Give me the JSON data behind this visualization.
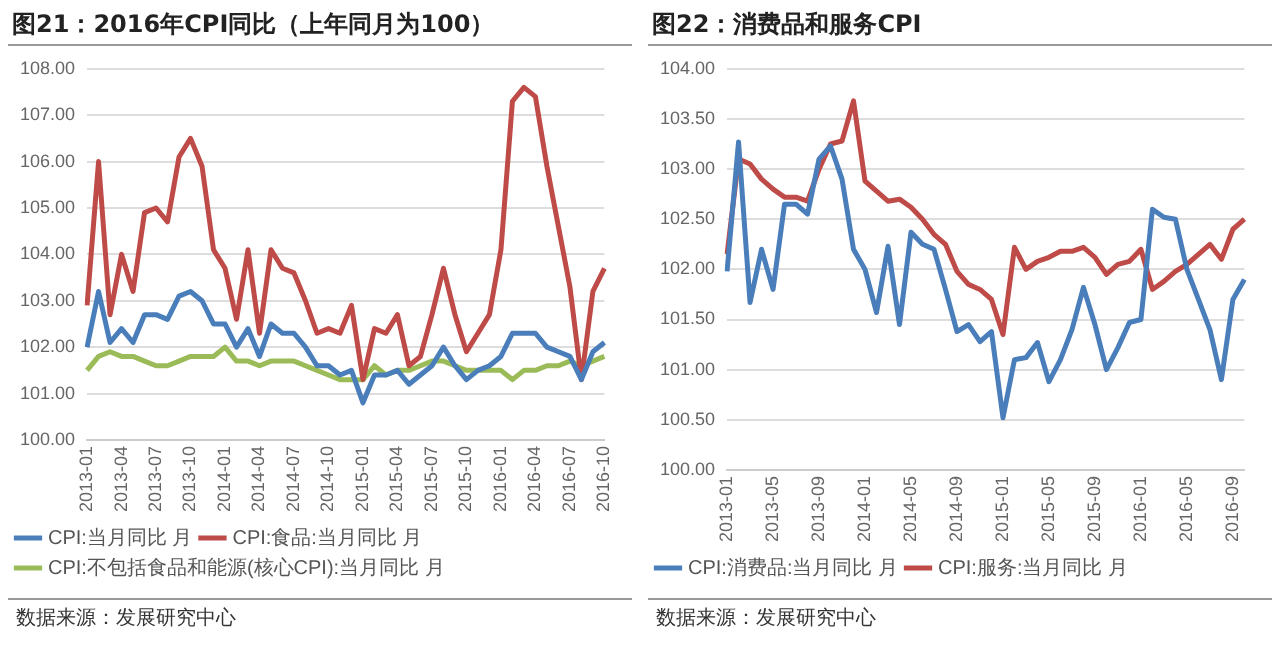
{
  "chart_data": [
    {
      "type": "line",
      "title": "图21：2016年CPI同比（上年同月为100）",
      "categories": [
        "2013-01",
        null,
        null,
        "2013-04",
        null,
        null,
        "2013-07",
        null,
        null,
        "2013-10",
        null,
        null,
        "2014-01",
        null,
        null,
        "2014-04",
        null,
        null,
        "2014-07",
        null,
        null,
        "2014-10",
        null,
        null,
        "2015-01",
        null,
        null,
        "2015-04",
        null,
        null,
        "2015-07",
        null,
        null,
        "2015-10",
        null,
        null,
        "2016-01",
        null,
        null,
        "2016-04",
        null,
        null,
        "2016-07",
        null,
        null,
        "2016-10"
      ],
      "series": [
        {
          "name": "CPI:当月同比 月",
          "color": "#4a7ebb",
          "values": [
            102.0,
            103.2,
            102.1,
            102.4,
            102.1,
            102.7,
            102.7,
            102.6,
            103.1,
            103.2,
            103.0,
            102.5,
            102.5,
            102.0,
            102.4,
            101.8,
            102.5,
            102.3,
            102.3,
            102.0,
            101.6,
            101.6,
            101.4,
            101.5,
            100.8,
            101.4,
            101.4,
            101.5,
            101.2,
            101.4,
            101.6,
            102.0,
            101.6,
            101.3,
            101.5,
            101.6,
            101.8,
            102.3,
            102.3,
            102.3,
            102.0,
            101.9,
            101.8,
            101.3,
            101.9,
            102.1
          ]
        },
        {
          "name": "CPI:食品:当月同比 月",
          "color": "#be4b48",
          "values": [
            102.9,
            106.0,
            102.7,
            104.0,
            103.2,
            104.9,
            105.0,
            104.7,
            106.1,
            106.5,
            105.9,
            104.1,
            103.7,
            102.6,
            104.1,
            102.3,
            104.1,
            103.7,
            103.6,
            103.0,
            102.3,
            102.4,
            102.3,
            102.9,
            101.3,
            102.4,
            102.3,
            102.7,
            101.6,
            101.8,
            102.7,
            103.7,
            102.7,
            101.9,
            102.3,
            102.7,
            104.1,
            107.3,
            107.6,
            107.4,
            105.9,
            104.6,
            103.3,
            101.3,
            103.2,
            103.7
          ]
        },
        {
          "name": "CPI:不包括食品和能源(核心CPI):当月同比 月",
          "color": "#9bbb59",
          "values": [
            101.5,
            101.8,
            101.9,
            101.8,
            101.8,
            101.7,
            101.6,
            101.6,
            101.7,
            101.8,
            101.8,
            101.8,
            102.0,
            101.7,
            101.7,
            101.6,
            101.7,
            101.7,
            101.7,
            101.6,
            101.5,
            101.4,
            101.3,
            101.3,
            101.3,
            101.6,
            101.4,
            101.5,
            101.5,
            101.6,
            101.7,
            101.7,
            101.6,
            101.5,
            101.5,
            101.5,
            101.5,
            101.3,
            101.5,
            101.5,
            101.6,
            101.6,
            101.7,
            101.6,
            101.7,
            101.8
          ]
        }
      ],
      "ylim": [
        100,
        108
      ],
      "yticks": [
        {
          "value": 100,
          "label": "100.00"
        },
        {
          "value": 101,
          "label": "101.00"
        },
        {
          "value": 102,
          "label": "102.00"
        },
        {
          "value": 103,
          "label": "103.00"
        },
        {
          "value": 104,
          "label": "104.00"
        },
        {
          "value": 105,
          "label": "105.00"
        },
        {
          "value": 106,
          "label": "106.00"
        },
        {
          "value": 107,
          "label": "107.00"
        },
        {
          "value": 108,
          "label": "108.00"
        }
      ],
      "grid": "y",
      "legend": "bottom",
      "marker": "none",
      "line_style": "solid",
      "annotations": [
        "数据来源：发展研究中心"
      ]
    },
    {
      "type": "line",
      "title": "图22：消费品和服务CPI",
      "categories": [
        "2013-01",
        null,
        null,
        null,
        "2013-05",
        null,
        null,
        null,
        "2013-09",
        null,
        null,
        null,
        "2014-01",
        null,
        null,
        null,
        "2014-05",
        null,
        null,
        null,
        "2014-09",
        null,
        null,
        null,
        "2015-01",
        null,
        null,
        null,
        "2015-05",
        null,
        null,
        null,
        "2015-09",
        null,
        null,
        null,
        "2016-01",
        null,
        null,
        null,
        "2016-05",
        null,
        null,
        null,
        "2016-09",
        null
      ],
      "series": [
        {
          "name": "CPI:消费品:当月同比 月",
          "color": "#4a7ebb",
          "values": [
            101.98,
            103.27,
            101.67,
            102.2,
            101.8,
            102.65,
            102.65,
            102.55,
            103.1,
            103.23,
            102.9,
            102.2,
            102.0,
            101.57,
            102.23,
            101.45,
            102.37,
            102.25,
            102.2,
            101.8,
            101.38,
            101.45,
            101.28,
            101.38,
            100.52,
            101.1,
            101.12,
            101.27,
            100.88,
            101.1,
            101.4,
            101.82,
            101.45,
            101.0,
            101.22,
            101.47,
            101.5,
            102.6,
            102.52,
            102.5,
            102.0,
            101.7,
            101.4,
            100.9,
            101.7,
            101.9
          ]
        },
        {
          "name": "CPI:服务:当月同比 月",
          "color": "#be4b48",
          "values": [
            102.15,
            103.1,
            103.05,
            102.9,
            102.8,
            102.72,
            102.72,
            102.68,
            103.0,
            103.25,
            103.28,
            103.68,
            102.88,
            102.78,
            102.68,
            102.7,
            102.62,
            102.5,
            102.35,
            102.25,
            101.98,
            101.85,
            101.8,
            101.7,
            101.35,
            102.22,
            102.0,
            102.08,
            102.12,
            102.18,
            102.18,
            102.22,
            102.12,
            101.95,
            102.05,
            102.08,
            102.2,
            101.8,
            101.88,
            101.98,
            102.05,
            102.15,
            102.25,
            102.1,
            102.4,
            102.5
          ]
        }
      ],
      "ylim": [
        100,
        104
      ],
      "yticks": [
        {
          "value": 100,
          "label": "100.00"
        },
        {
          "value": 100.5,
          "label": "100.50"
        },
        {
          "value": 101,
          "label": "101.00"
        },
        {
          "value": 101.5,
          "label": "101.50"
        },
        {
          "value": 102,
          "label": "102.00"
        },
        {
          "value": 102.5,
          "label": "102.50"
        },
        {
          "value": 103,
          "label": "103.00"
        },
        {
          "value": 103.5,
          "label": "103.50"
        },
        {
          "value": 104,
          "label": "104.00"
        }
      ],
      "grid": "y",
      "legend": "bottom",
      "marker": "none",
      "line_style": "solid",
      "annotations": [
        "数据来源：发展研究中心"
      ]
    }
  ]
}
